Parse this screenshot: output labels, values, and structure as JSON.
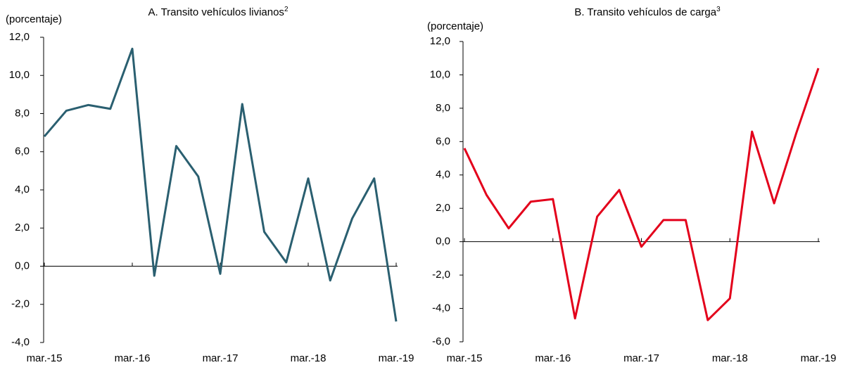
{
  "chart_data": [
    {
      "type": "line",
      "title": "A. Transito vehículos livianos",
      "title_note": "2",
      "y_label": "(porcentaje)",
      "categories": [
        "mar.-15",
        null,
        null,
        null,
        "mar.-16",
        null,
        null,
        null,
        "mar.-17",
        null,
        null,
        null,
        "mar.-18",
        null,
        null,
        null,
        "mar.-19"
      ],
      "series": [
        {
          "name": "Transito vehículos livianos",
          "color": "#2a5f70",
          "values": [
            6.8,
            8.15,
            8.45,
            8.25,
            11.4,
            -0.5,
            6.3,
            4.7,
            -0.4,
            8.5,
            1.8,
            0.2,
            4.6,
            -0.75,
            2.5,
            4.6,
            -2.9
          ]
        }
      ],
      "ylim": [
        -4,
        12
      ],
      "yticks": [
        {
          "value": -4,
          "label": "-4,0"
        },
        {
          "value": -2,
          "label": "-2,0"
        },
        {
          "value": 0,
          "label": "0,0"
        },
        {
          "value": 2,
          "label": "2,0"
        },
        {
          "value": 4,
          "label": "4,0"
        },
        {
          "value": 6,
          "label": "6,0"
        },
        {
          "value": 8,
          "label": "8,0"
        },
        {
          "value": 10,
          "label": "10,0"
        },
        {
          "value": 12,
          "label": "12,0"
        }
      ]
    },
    {
      "type": "line",
      "title": "B. Transito vehículos de carga",
      "title_note": "3",
      "y_label": "(porcentaje)",
      "categories": [
        "mar.-15",
        null,
        null,
        null,
        "mar.-16",
        null,
        null,
        null,
        "mar.-17",
        null,
        null,
        null,
        "mar.-18",
        null,
        null,
        null,
        "mar.-19"
      ],
      "series": [
        {
          "name": "Transito vehículos de carga",
          "color": "#e3001b",
          "values": [
            5.6,
            2.8,
            0.8,
            2.4,
            2.55,
            -4.6,
            1.5,
            3.1,
            -0.3,
            1.3,
            1.3,
            -4.7,
            -3.4,
            6.6,
            2.3,
            6.5,
            10.4
          ]
        }
      ],
      "ylim": [
        -6,
        12
      ],
      "yticks": [
        {
          "value": -6,
          "label": "-6,0"
        },
        {
          "value": -4,
          "label": "-4,0"
        },
        {
          "value": -2,
          "label": "-2,0"
        },
        {
          "value": 0,
          "label": "0,0"
        },
        {
          "value": 2,
          "label": "2,0"
        },
        {
          "value": 4,
          "label": "4,0"
        },
        {
          "value": 6,
          "label": "6,0"
        },
        {
          "value": 8,
          "label": "8,0"
        },
        {
          "value": 10,
          "label": "10,0"
        },
        {
          "value": 12,
          "label": "12,0"
        }
      ]
    }
  ]
}
